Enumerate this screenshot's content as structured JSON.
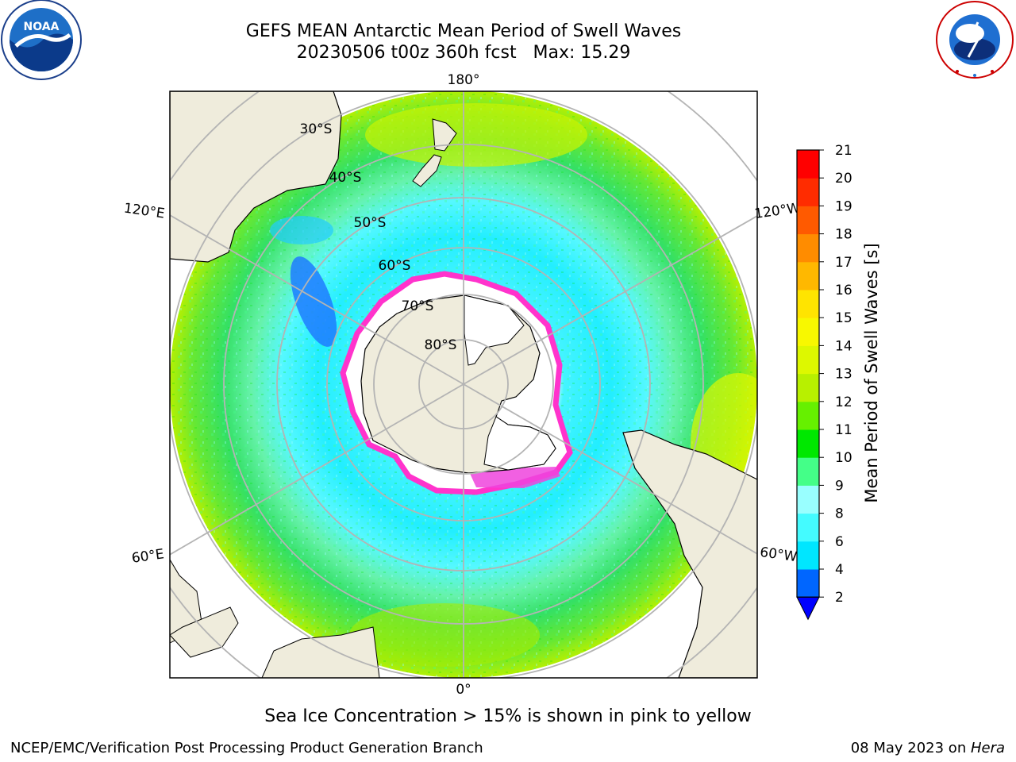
{
  "title": {
    "line1": "GEFS MEAN Antarctic Mean Period of Swell Waves",
    "line2": "20230506 t00z 360h fcst   Max: 15.29"
  },
  "logos": {
    "left": "noaa-logo",
    "right": "national-weather-service-logo"
  },
  "map": {
    "projection": "south-polar-stereographic",
    "longitude_labels": {
      "top": "180°",
      "bottom": "0°",
      "upper_left": "120°E",
      "upper_right": "120°W",
      "lower_left": "60°E",
      "lower_right": "60°W"
    },
    "latitude_labels": [
      "30°S",
      "40°S",
      "50°S",
      "60°S",
      "70°S",
      "80°S"
    ],
    "colors": {
      "land": "#efecdc",
      "ice_edge": "#ff33cc",
      "ice_interior": "#ffffff",
      "graticule": "#b4b4b4"
    }
  },
  "colorbar": {
    "label": "Mean Period of Swell Waves [s]",
    "ticks": [
      "2",
      "4",
      "6",
      "8",
      "9",
      "10",
      "11",
      "12",
      "13",
      "14",
      "15",
      "16",
      "17",
      "18",
      "19",
      "20",
      "21"
    ],
    "colors": [
      "#0066ff",
      "#00e6ff",
      "#44fbff",
      "#99ffff",
      "#44ff88",
      "#00e800",
      "#66f000",
      "#b8f000",
      "#ddf800",
      "#f8f800",
      "#ffe400",
      "#ffb800",
      "#ff8c00",
      "#ff5a00",
      "#ff2c00",
      "#ff0000"
    ],
    "extend_below_color": "#0000ff"
  },
  "footer": {
    "note": "Sea Ice Concentration > 15% is shown in pink to yellow",
    "left": "NCEP/EMC/Verification Post Processing Product Generation Branch",
    "right_date": "08 May 2023 on ",
    "right_host": "Hera"
  }
}
